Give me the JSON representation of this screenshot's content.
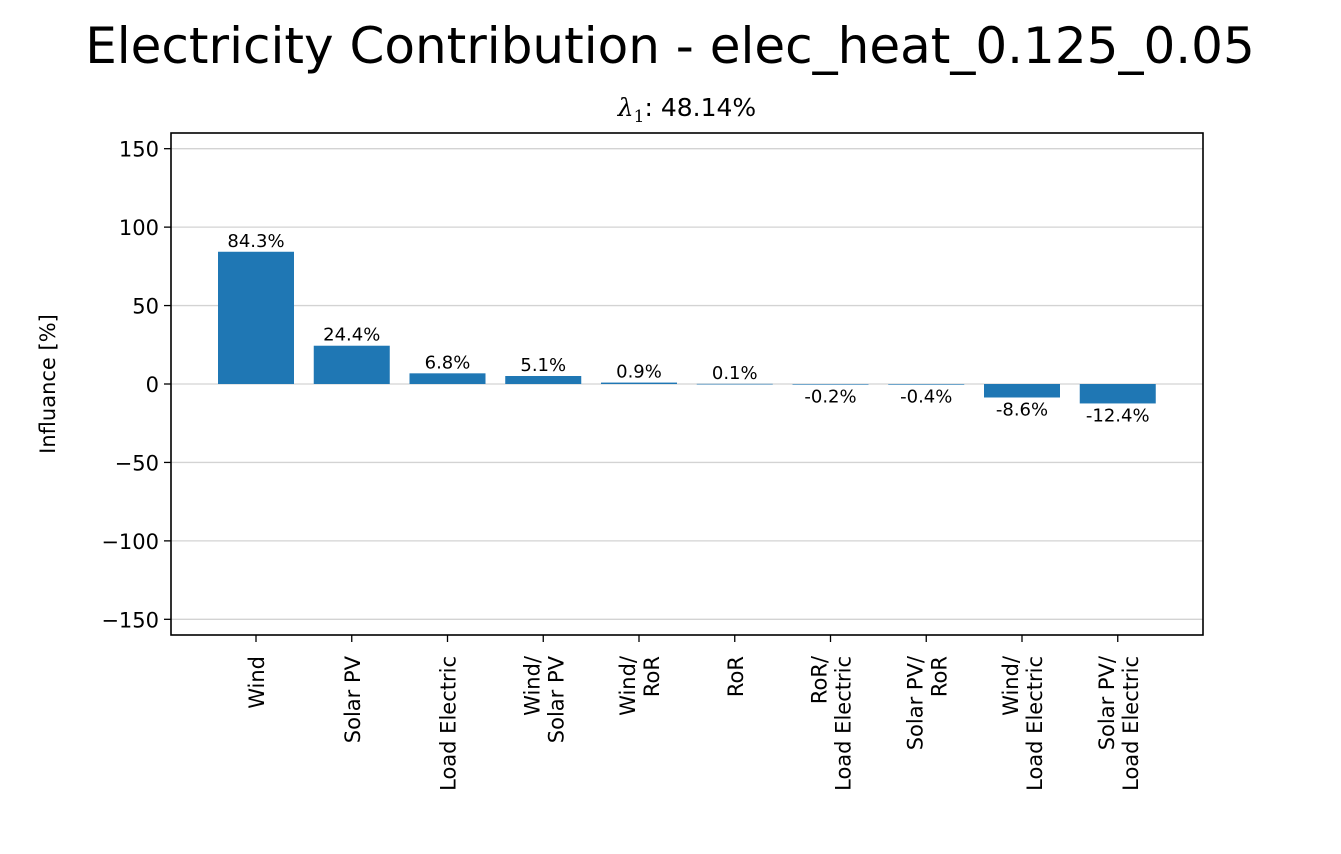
{
  "figure": {
    "suptitle": "Electricity Contribution - elec_heat_0.125_0.05",
    "subtitle_symbol": "λ",
    "subtitle_subscript": "1",
    "subtitle_text": ": 48.14%"
  },
  "chart_data": {
    "type": "bar",
    "title": "λ1: 48.14%",
    "xlabel": "",
    "ylabel": "Influance [%]",
    "categories": [
      [
        "Wind"
      ],
      [
        "Solar PV"
      ],
      [
        "Load Electric"
      ],
      [
        "Wind/",
        "Solar PV"
      ],
      [
        "Wind/",
        "RoR"
      ],
      [
        "RoR"
      ],
      [
        "RoR/",
        "Load Electric"
      ],
      [
        "Solar PV/",
        "RoR"
      ],
      [
        "Wind/",
        "Load Electric"
      ],
      [
        "Solar PV/",
        "Load Electric"
      ]
    ],
    "values": [
      84.3,
      24.4,
      6.8,
      5.1,
      0.9,
      0.1,
      -0.2,
      -0.4,
      -8.6,
      -12.4
    ],
    "data_labels": [
      "84.3%",
      "24.4%",
      "6.8%",
      "5.1%",
      "0.9%",
      "0.1%",
      "-0.2%",
      "-0.4%",
      "-8.6%",
      "-12.4%"
    ],
    "ylim": [
      -160,
      160
    ],
    "yticks": [
      -150,
      -100,
      -50,
      0,
      50,
      100,
      150
    ],
    "ytick_labels": [
      "−150",
      "−100",
      "−50",
      "0",
      "50",
      "100",
      "150"
    ],
    "grid": "horizontal",
    "legend": "none",
    "bar_color": "#1f77b4",
    "grid_color": "#d3d3d3"
  }
}
